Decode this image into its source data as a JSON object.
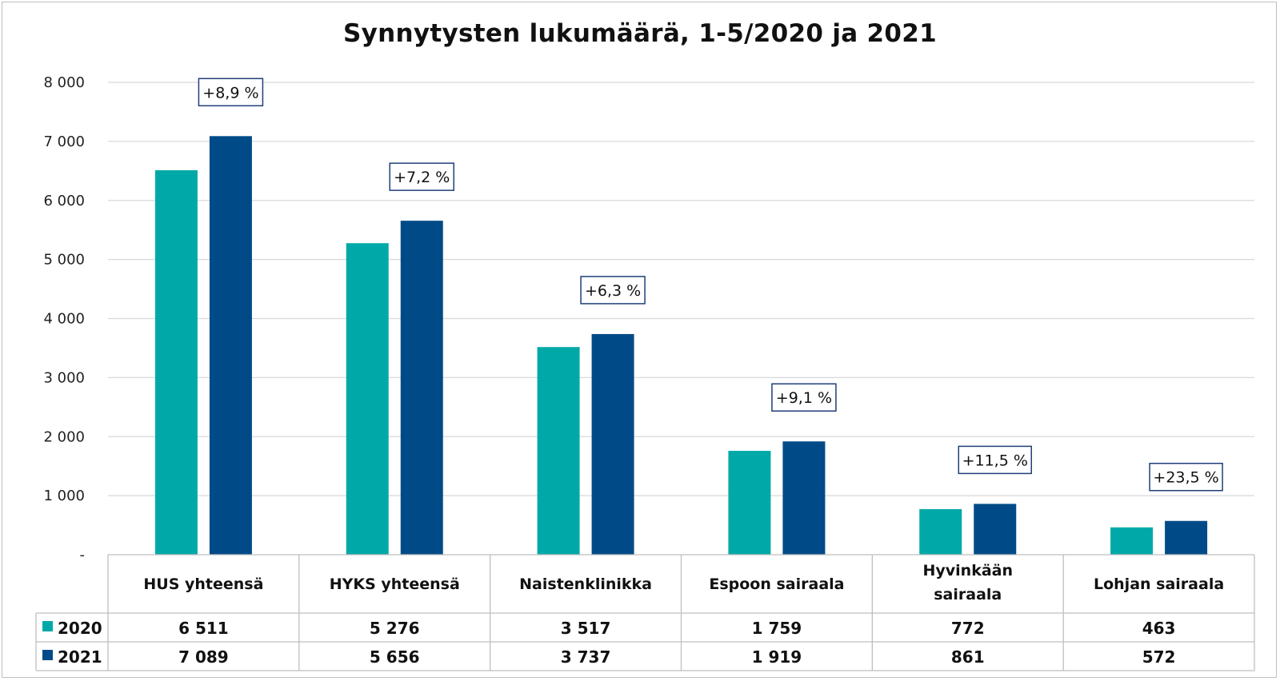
{
  "chart_data": {
    "type": "bar",
    "title": "Synnytysten lukumäärä,  1-5/2020 ja 2021",
    "categories": [
      [
        "HUS yhteensä"
      ],
      [
        "HYKS yhteensä"
      ],
      [
        "Naistenklinikka"
      ],
      [
        "Espoon sairaala"
      ],
      [
        "Hyvinkään",
        "sairaala"
      ],
      [
        "Lohjan sairaala"
      ]
    ],
    "series": [
      {
        "name": "2020",
        "color": "#00a9a8",
        "values": [
          6511,
          5276,
          3517,
          1759,
          772,
          463
        ],
        "labels": [
          "6 511",
          "5 276",
          "3 517",
          "1 759",
          "772",
          "463"
        ]
      },
      {
        "name": "2021",
        "color": "#004b87",
        "values": [
          7089,
          5656,
          3737,
          1919,
          861,
          572
        ],
        "labels": [
          "7 089",
          "5 656",
          "3 737",
          "1 919",
          "861",
          "572"
        ]
      }
    ],
    "annotations": [
      "+8,9 %",
      "+7,2 %",
      "+6,3 %",
      "+9,1 %",
      "+11,5 %",
      "+23,5 %"
    ],
    "ylim": [
      0,
      8000
    ],
    "yticks": [
      0,
      1000,
      2000,
      3000,
      4000,
      5000,
      6000,
      7000,
      8000
    ],
    "ytick_labels": [
      "-",
      "1 000",
      "2 000",
      "3 000",
      "4 000",
      "5 000",
      "6 000",
      "7 000",
      "8 000"
    ],
    "grid": true,
    "legend": "data-table",
    "xlabel": "",
    "ylabel": ""
  }
}
